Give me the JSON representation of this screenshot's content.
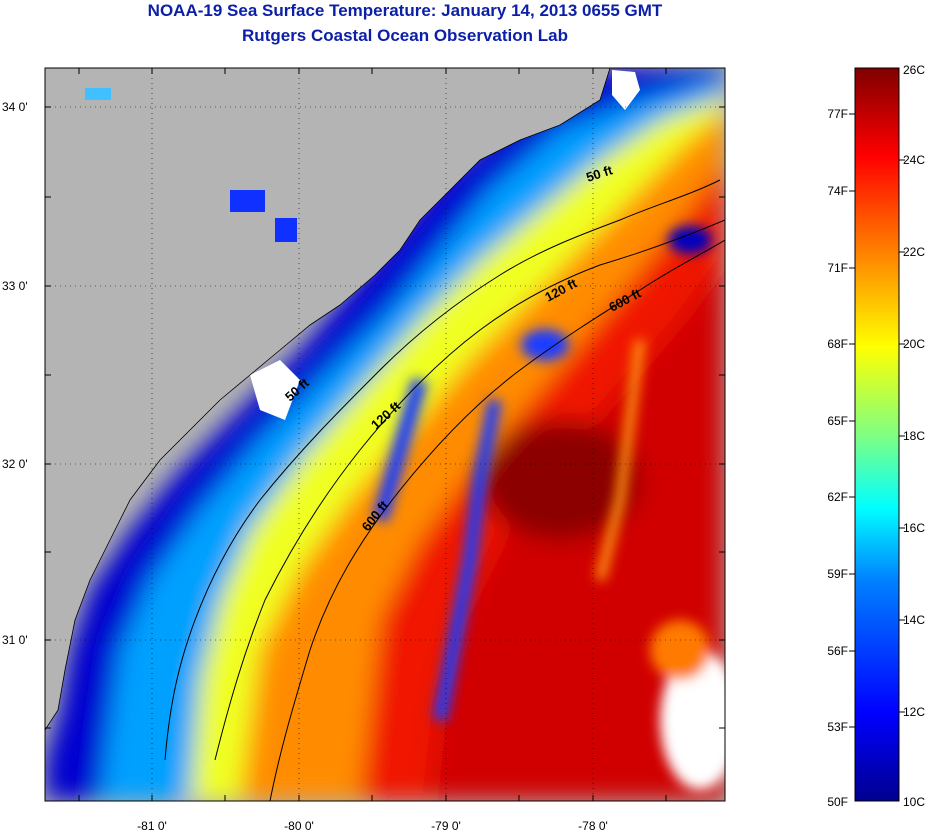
{
  "title": {
    "line1": "NOAA-19 Sea Surface Temperature:  January 14, 2013 0655 GMT",
    "line2": "Rutgers Coastal Ocean Observation Lab"
  },
  "map": {
    "lat_labels": [
      "34 0'",
      "33 0'",
      "32 0'",
      "31 0'"
    ],
    "lon_labels": [
      "-81 0'",
      "-80 0'",
      "-79 0'",
      "-78 0'"
    ],
    "contour_labels": [
      "50 ft",
      "120 ft",
      "600 ft",
      "120 ft",
      "600 ft",
      "50 ft"
    ],
    "colors": {
      "land": "#b4b4b4",
      "coast": "#000000",
      "grid": "#000000"
    }
  },
  "colorbar": {
    "fahrenheit_labels": [
      "77F",
      "74F",
      "71F",
      "68F",
      "65F",
      "62F",
      "59F",
      "56F",
      "53F",
      "50F"
    ],
    "celsius_labels": [
      "26C",
      "24C",
      "22C",
      "20C",
      "18C",
      "16C",
      "14C",
      "12C",
      "10C"
    ],
    "colormap": [
      "#00008f",
      "#0000ff",
      "#0080ff",
      "#00ffff",
      "#80ff80",
      "#ffff00",
      "#ff8000",
      "#ff0000",
      "#800000"
    ]
  }
}
